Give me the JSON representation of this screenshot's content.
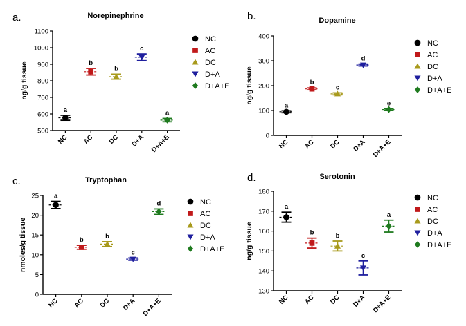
{
  "figure": {
    "legend_labels": [
      "NC",
      "AC",
      "DC",
      "D+A",
      "D+A+E"
    ]
  },
  "colors": {
    "NC": "#000000",
    "AC": "#c0191a",
    "DC": "#a89a1c",
    "D+A": "#1f1f9e",
    "D+A+E": "#1e7a1e"
  },
  "chart_data": [
    {
      "panel_label": "a.",
      "type": "scatter",
      "title": "Norepinephrine",
      "ylabel": "ng/g tissue",
      "categories": [
        "NC",
        "AC",
        "DC",
        "D+A",
        "D+A+E"
      ],
      "ylim": [
        500,
        1100
      ],
      "yticks": [
        500,
        600,
        700,
        800,
        900,
        1000,
        1100
      ],
      "means": [
        577,
        855,
        825,
        942,
        563
      ],
      "errors": [
        15,
        20,
        15,
        20,
        10
      ],
      "letters": [
        "a",
        "b",
        "b",
        "c",
        "a"
      ],
      "legend": [
        "NC",
        "AC",
        "DC",
        "D+A",
        "D+A+E"
      ]
    },
    {
      "panel_label": "b.",
      "type": "scatter",
      "title": "Dopamine",
      "ylabel": "ng/g tissue",
      "categories": [
        "NC",
        "AC",
        "DC",
        "D+A",
        "D+A+E"
      ],
      "ylim": [
        0,
        400
      ],
      "yticks": [
        0,
        100,
        200,
        300,
        400
      ],
      "means": [
        95,
        187,
        167,
        283,
        104
      ],
      "errors": [
        4,
        4,
        4,
        4,
        3
      ],
      "letters": [
        "a",
        "b",
        "c",
        "d",
        "e"
      ],
      "legend": [
        "NC",
        "AC",
        "DC",
        "D+A",
        "D+A+E"
      ]
    },
    {
      "panel_label": "c.",
      "type": "scatter",
      "title": "Tryptophan",
      "ylabel": "nmoles/g tissue",
      "categories": [
        "NC",
        "AC",
        "DC",
        "D+A",
        "D+A+E"
      ],
      "ylim": [
        0,
        25
      ],
      "yticks": [
        0,
        5,
        10,
        15,
        20,
        25
      ],
      "means": [
        22.6,
        11.9,
        12.7,
        8.9,
        20.9
      ],
      "errors": [
        0.9,
        0.5,
        0.6,
        0.3,
        0.7
      ],
      "letters": [
        "a",
        "b",
        "b",
        "c",
        "d"
      ],
      "legend": [
        "NC",
        "AC",
        "DC",
        "D+A",
        "D+A+E"
      ]
    },
    {
      "panel_label": "d.",
      "type": "scatter",
      "title": "Serotonin",
      "ylabel": "ng/g tissue",
      "categories": [
        "NC",
        "AC",
        "DC",
        "D+A",
        "D+A+E"
      ],
      "ylim": [
        130,
        180
      ],
      "yticks": [
        130,
        140,
        150,
        160,
        170,
        180
      ],
      "means": [
        167,
        154,
        152.5,
        141.5,
        162.5
      ],
      "errors": [
        2.5,
        2.5,
        2.5,
        3.5,
        3
      ],
      "letters": [
        "a",
        "b",
        "b",
        "c",
        "a"
      ],
      "legend": [
        "NC",
        "AC",
        "DC",
        "D+A",
        "D+A+E"
      ]
    }
  ]
}
